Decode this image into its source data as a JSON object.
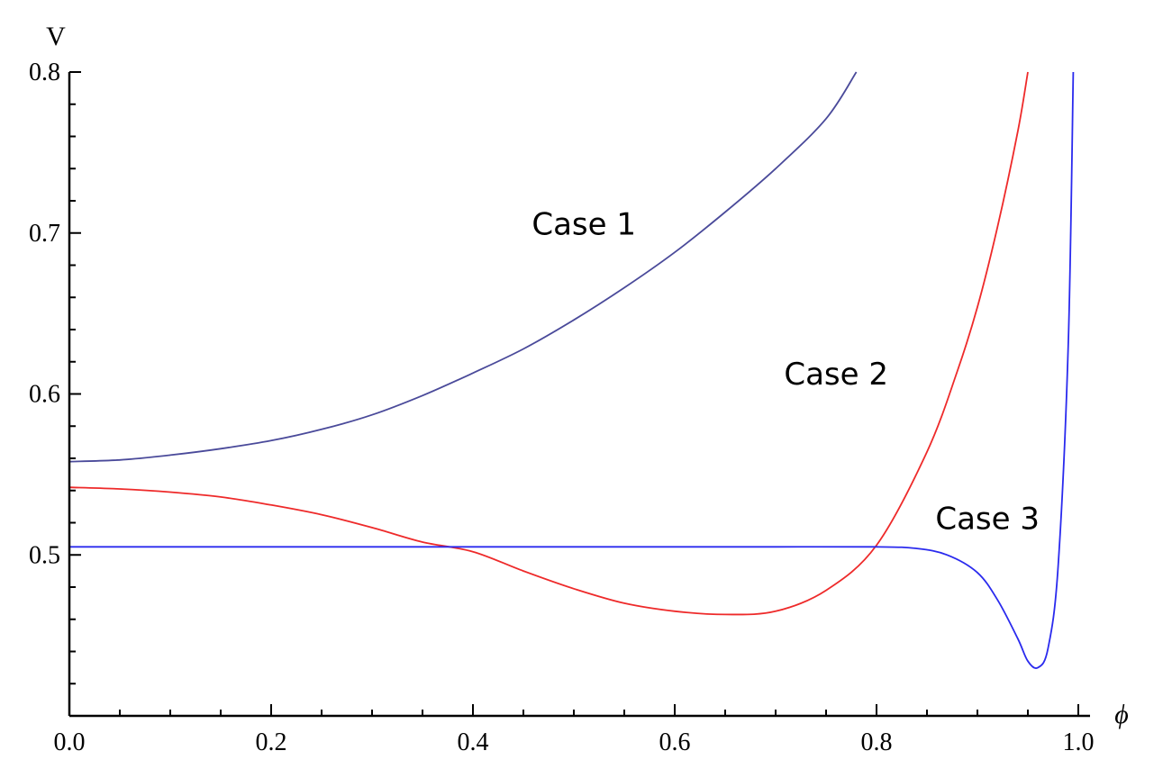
{
  "chart_data": {
    "type": "line",
    "xlabel": "ϕ",
    "ylabel": "V",
    "xlim": [
      0.0,
      1.0
    ],
    "ylim": [
      0.4,
      0.8
    ],
    "x_ticks": [
      "0.0",
      "0.2",
      "0.4",
      "0.6",
      "0.8",
      "1.0"
    ],
    "y_ticks": [
      "0.5",
      "0.6",
      "0.7",
      "0.8"
    ],
    "grid": false,
    "series": [
      {
        "color": "#4a4a9a",
        "x": [
          0.0,
          0.05,
          0.1,
          0.15,
          0.2,
          0.25,
          0.3,
          0.35,
          0.4,
          0.45,
          0.5,
          0.55,
          0.6,
          0.65,
          0.7,
          0.75,
          0.78
        ],
        "y": [
          0.558,
          0.559,
          0.562,
          0.566,
          0.571,
          0.578,
          0.587,
          0.599,
          0.613,
          0.628,
          0.646,
          0.666,
          0.688,
          0.713,
          0.74,
          0.771,
          0.8
        ]
      },
      {
        "color": "#ee2a2a",
        "x": [
          0.0,
          0.05,
          0.1,
          0.15,
          0.2,
          0.25,
          0.3,
          0.35,
          0.4,
          0.45,
          0.5,
          0.55,
          0.6,
          0.65,
          0.7,
          0.75,
          0.8,
          0.85,
          0.88,
          0.9,
          0.92,
          0.94,
          0.95
        ],
        "y": [
          0.542,
          0.541,
          0.539,
          0.536,
          0.531,
          0.525,
          0.517,
          0.508,
          0.502,
          0.49,
          0.479,
          0.47,
          0.465,
          0.463,
          0.465,
          0.478,
          0.506,
          0.564,
          0.614,
          0.654,
          0.704,
          0.763,
          0.8
        ]
      },
      {
        "color": "#2a2aee",
        "x": [
          0.0,
          0.1,
          0.2,
          0.3,
          0.4,
          0.5,
          0.6,
          0.7,
          0.8,
          0.84,
          0.87,
          0.9,
          0.92,
          0.94,
          0.95,
          0.96,
          0.97,
          0.98,
          0.99,
          0.995
        ],
        "y": [
          0.505,
          0.505,
          0.505,
          0.505,
          0.505,
          0.505,
          0.505,
          0.505,
          0.505,
          0.504,
          0.5,
          0.489,
          0.472,
          0.448,
          0.434,
          0.43,
          0.442,
          0.493,
          0.63,
          0.8
        ]
      }
    ],
    "annotations": [
      {
        "text": "Case 1",
        "x": 0.51,
        "y": 0.699
      },
      {
        "text": "Case 2",
        "x": 0.76,
        "y": 0.606
      },
      {
        "text": "Case 3",
        "x": 0.91,
        "y": 0.516
      }
    ]
  }
}
